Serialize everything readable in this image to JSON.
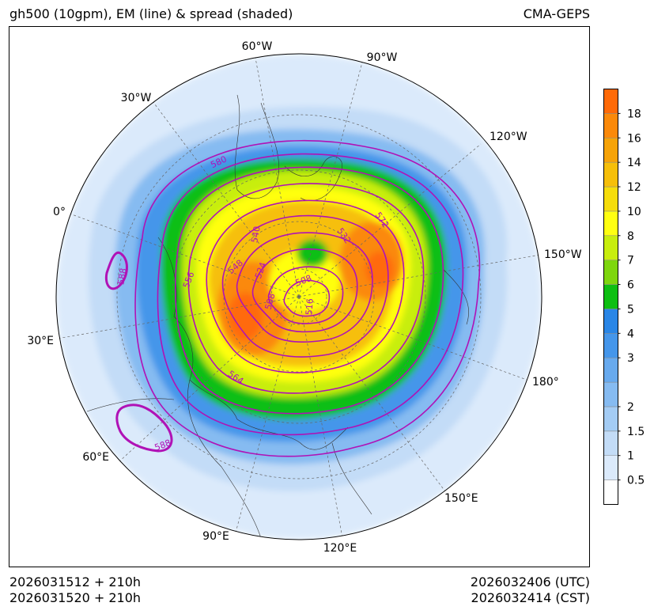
{
  "header": {
    "title": "gh500 (10gpm), EM (line) & spread (shaded)",
    "model": "CMA-GEPS"
  },
  "footer": {
    "init_utc": "2026031512 + 210h",
    "init_cst": "2026031520 + 210h",
    "valid_utc": "2026032406 (UTC)",
    "valid_cst": "2026032414 (CST)"
  },
  "chart_data": {
    "type": "heatmap",
    "projection": "north polar stereographic",
    "title": "gh500 (10gpm), EM (line) & spread (shaded)",
    "variable_lines": "500 hPa geopotential height ensemble mean (10gpm)",
    "variable_shaded": "500 hPa geopotential height ensemble spread",
    "longitude_labels": [
      "60°W",
      "90°W",
      "30°W",
      "120°W",
      "0°",
      "150°W",
      "30°E",
      "180°",
      "60°E",
      "150°E",
      "90°E",
      "120°E"
    ],
    "contour_levels_labeled": [
      "580",
      "572",
      "540",
      "532",
      "548",
      "524",
      "556",
      "508",
      "508",
      "516",
      "588",
      "588",
      "564"
    ],
    "colorbar": {
      "ticks": [
        "0.5",
        "1",
        "1.5",
        "2",
        "2.5",
        "3",
        "4",
        "5",
        "6",
        "7",
        "8",
        "10",
        "12",
        "14",
        "16",
        "18"
      ],
      "tick_labels": [
        "0.5",
        "1",
        "1.5",
        "2",
        "3",
        "4",
        "5",
        "6",
        "7",
        "8",
        "10",
        "12",
        "14",
        "16",
        "18"
      ],
      "colors": [
        "#ffffff",
        "#dbeafb",
        "#c3dcf7",
        "#a4ccf4",
        "#86bbf1",
        "#68aaee",
        "#4596ea",
        "#2a86e6",
        "#0ebf12",
        "#7ed60e",
        "#c8ee0e",
        "#ffff11",
        "#f6dd0b",
        "#f6bf09",
        "#f6a308",
        "#fb8909",
        "#ff6a07"
      ]
    }
  }
}
